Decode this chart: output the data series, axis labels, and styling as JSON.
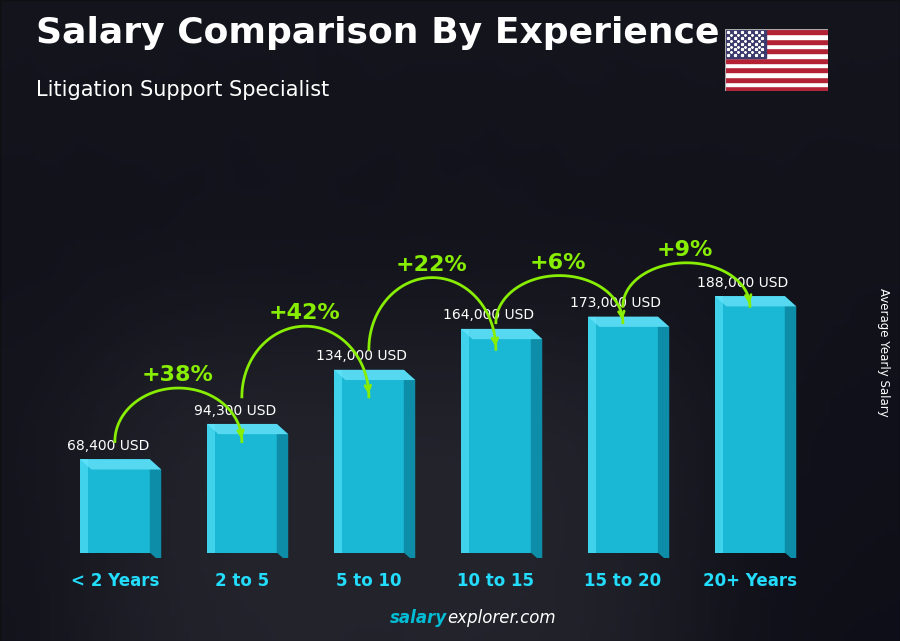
{
  "title": "Salary Comparison By Experience",
  "subtitle": "Litigation Support Specialist",
  "categories": [
    "< 2 Years",
    "2 to 5",
    "5 to 10",
    "10 to 15",
    "15 to 20",
    "20+ Years"
  ],
  "values": [
    68400,
    94300,
    134000,
    164000,
    173000,
    188000
  ],
  "value_labels": [
    "68,400 USD",
    "94,300 USD",
    "134,000 USD",
    "164,000 USD",
    "173,000 USD",
    "188,000 USD"
  ],
  "pct_changes": [
    "+38%",
    "+42%",
    "+22%",
    "+6%",
    "+9%"
  ],
  "bar_face_color": "#1ab8d4",
  "bar_side_color": "#0d8da8",
  "bar_top_color": "#55d8f0",
  "bar_highlight": "#60e8ff",
  "bg_dark": "#1a1f2e",
  "bg_mid": "#2a3040",
  "title_color": "#ffffff",
  "subtitle_color": "#ffffff",
  "value_label_color": "#ffffff",
  "pct_color": "#88ee00",
  "xticklabel_color": "#22ddff",
  "ylabel_text": "Average Yearly Salary",
  "footer_salary_color": "#00bcd4",
  "footer_explorer_color": "#ffffff",
  "arc_lift": [
    0.14,
    0.17,
    0.2,
    0.16,
    0.13
  ],
  "pct_fontsize": 16,
  "value_fontsize": 10,
  "title_fontsize": 26,
  "subtitle_fontsize": 15,
  "xticklabel_fontsize": 12
}
